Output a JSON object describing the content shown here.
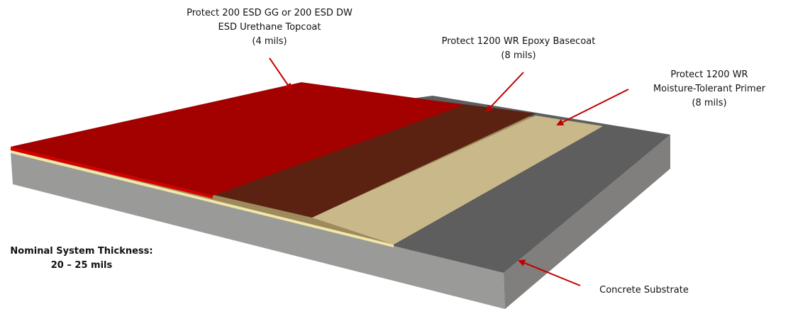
{
  "labels": {
    "topcoat": [
      "Protect 200 ESD GG or 200 ESD DW",
      "ESD Urethane Topcoat",
      "(4 mils)"
    ],
    "basecoat": [
      "Protect 1200 WR Epoxy Basecoat",
      "(8 mils)"
    ],
    "primer": [
      "Protect 1200 WR",
      "Moisture-Tolerant Primer",
      "(8 mils)"
    ],
    "substrate": "Concrete Substrate",
    "thickness": [
      "Nominal System Thickness:",
      "20 – 25 mils"
    ]
  }
}
